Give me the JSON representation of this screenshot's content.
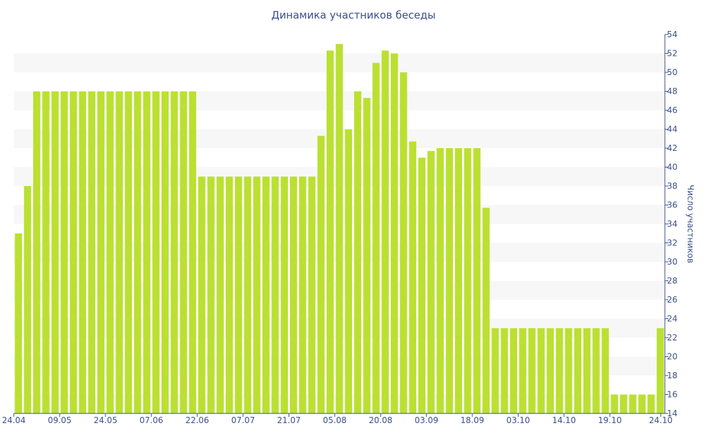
{
  "chart_data": {
    "type": "bar",
    "title": "Динамика участников беседы",
    "xlabel": "",
    "ylabel": "Число участников",
    "y_axis_side": "right",
    "ylim": [
      14,
      54
    ],
    "y_ticks": [
      14,
      16,
      18,
      20,
      22,
      24,
      26,
      28,
      30,
      32,
      34,
      36,
      38,
      40,
      42,
      44,
      46,
      48,
      50,
      52,
      54
    ],
    "x_tick_labels": [
      "24.04",
      "09.05",
      "24.05",
      "07.06",
      "22.06",
      "07.07",
      "21.07",
      "05.08",
      "20.08",
      "03.09",
      "18.09",
      "03.10",
      "14.10",
      "19.10",
      "24.10"
    ],
    "x_tick_positions": [
      0,
      5,
      10,
      15,
      20,
      25,
      30,
      35,
      40,
      45,
      50,
      55,
      60,
      65,
      70
    ],
    "x_count": 71,
    "grid": "horizontal-bands",
    "legend": "none",
    "bar_color": "#bbe032",
    "band_color": "#f7f7f7",
    "axis_color": "#3a4e8c",
    "values": [
      33,
      38,
      48,
      48,
      48,
      48,
      48,
      48,
      48,
      48,
      48,
      48,
      48,
      48,
      48,
      48,
      48,
      48,
      48,
      48,
      39,
      39,
      39,
      39,
      39,
      39,
      39,
      39,
      39,
      39,
      39,
      39,
      39,
      43.3,
      52.3,
      53,
      44,
      48,
      47.3,
      51,
      52.3,
      52,
      50,
      42.7,
      41,
      41.7,
      42,
      42,
      42,
      42,
      42,
      35.7,
      23,
      23,
      23,
      23,
      23,
      23,
      23,
      23,
      23,
      23,
      23,
      23,
      23,
      16,
      16,
      16,
      16,
      16,
      23
    ]
  }
}
